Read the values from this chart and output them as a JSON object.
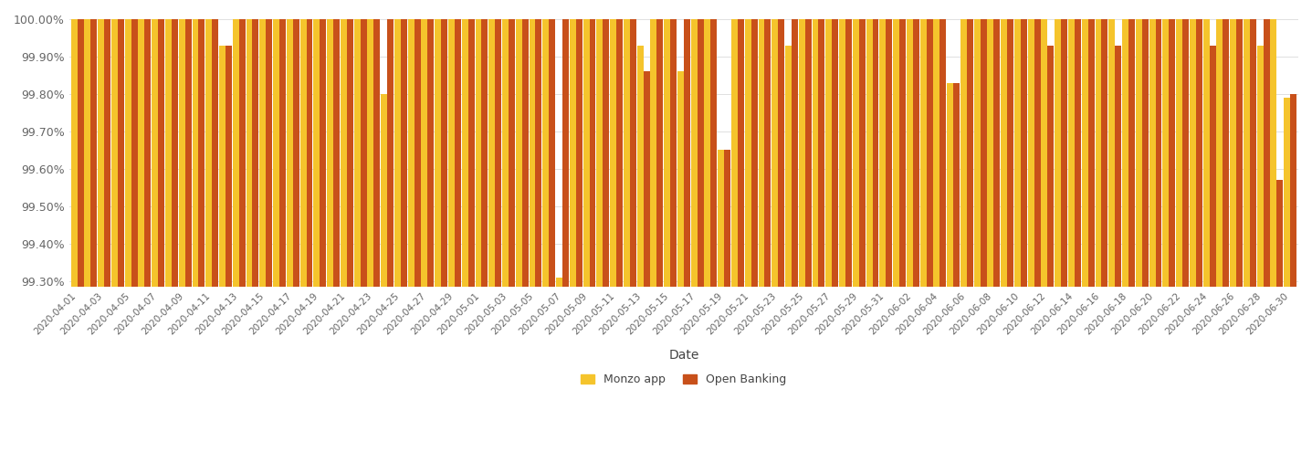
{
  "monzo_app": {
    "2020-04-01": 100.0,
    "2020-04-02": 100.0,
    "2020-04-03": 100.0,
    "2020-04-04": 100.0,
    "2020-04-05": 100.0,
    "2020-04-06": 100.0,
    "2020-04-07": 100.0,
    "2020-04-08": 100.0,
    "2020-04-09": 100.0,
    "2020-04-10": 100.0,
    "2020-04-11": 100.0,
    "2020-04-12": 99.93,
    "2020-04-13": 100.0,
    "2020-04-14": 100.0,
    "2020-04-15": 100.0,
    "2020-04-16": 100.0,
    "2020-04-17": 100.0,
    "2020-04-18": 100.0,
    "2020-04-19": 100.0,
    "2020-04-20": 100.0,
    "2020-04-21": 100.0,
    "2020-04-22": 100.0,
    "2020-04-23": 100.0,
    "2020-04-24": 99.8,
    "2020-04-25": 100.0,
    "2020-04-26": 100.0,
    "2020-04-27": 100.0,
    "2020-04-28": 100.0,
    "2020-04-29": 100.0,
    "2020-04-30": 100.0,
    "2020-05-01": 100.0,
    "2020-05-02": 100.0,
    "2020-05-03": 100.0,
    "2020-05-04": 100.0,
    "2020-05-05": 100.0,
    "2020-05-06": 100.0,
    "2020-05-07": 99.31,
    "2020-05-08": 100.0,
    "2020-05-09": 100.0,
    "2020-05-10": 100.0,
    "2020-05-11": 100.0,
    "2020-05-12": 100.0,
    "2020-05-13": 99.93,
    "2020-05-14": 100.0,
    "2020-05-15": 100.0,
    "2020-05-16": 99.86,
    "2020-05-17": 100.0,
    "2020-05-18": 100.0,
    "2020-05-19": 99.65,
    "2020-05-20": 100.0,
    "2020-05-21": 100.0,
    "2020-05-22": 100.0,
    "2020-05-23": 100.0,
    "2020-05-24": 99.93,
    "2020-05-25": 100.0,
    "2020-05-26": 100.0,
    "2020-05-27": 100.0,
    "2020-05-28": 100.0,
    "2020-05-29": 100.0,
    "2020-05-30": 100.0,
    "2020-05-31": 100.0,
    "2020-06-01": 100.0,
    "2020-06-02": 100.0,
    "2020-06-03": 100.0,
    "2020-06-04": 100.0,
    "2020-06-05": 99.83,
    "2020-06-06": 100.0,
    "2020-06-07": 100.0,
    "2020-06-08": 100.0,
    "2020-06-09": 100.0,
    "2020-06-10": 100.0,
    "2020-06-11": 100.0,
    "2020-06-12": 100.0,
    "2020-06-13": 100.0,
    "2020-06-14": 100.0,
    "2020-06-15": 100.0,
    "2020-06-16": 100.0,
    "2020-06-17": 100.0,
    "2020-06-18": 100.0,
    "2020-06-19": 100.0,
    "2020-06-20": 100.0,
    "2020-06-21": 100.0,
    "2020-06-22": 100.0,
    "2020-06-23": 100.0,
    "2020-06-24": 100.0,
    "2020-06-25": 100.0,
    "2020-06-26": 100.0,
    "2020-06-27": 100.0,
    "2020-06-28": 99.93,
    "2020-06-29": 100.0,
    "2020-06-30": 99.79
  },
  "open_banking": {
    "2020-04-01": 100.0,
    "2020-04-02": 100.0,
    "2020-04-03": 100.0,
    "2020-04-04": 100.0,
    "2020-04-05": 100.0,
    "2020-04-06": 100.0,
    "2020-04-07": 100.0,
    "2020-04-08": 100.0,
    "2020-04-09": 100.0,
    "2020-04-10": 100.0,
    "2020-04-11": 100.0,
    "2020-04-12": 99.93,
    "2020-04-13": 100.0,
    "2020-04-14": 100.0,
    "2020-04-15": 100.0,
    "2020-04-16": 100.0,
    "2020-04-17": 100.0,
    "2020-04-18": 100.0,
    "2020-04-19": 100.0,
    "2020-04-20": 100.0,
    "2020-04-21": 100.0,
    "2020-04-22": 100.0,
    "2020-04-23": 100.0,
    "2020-04-24": 100.0,
    "2020-04-25": 100.0,
    "2020-04-26": 100.0,
    "2020-04-27": 100.0,
    "2020-04-28": 100.0,
    "2020-04-29": 100.0,
    "2020-04-30": 100.0,
    "2020-05-01": 100.0,
    "2020-05-02": 100.0,
    "2020-05-03": 100.0,
    "2020-05-04": 100.0,
    "2020-05-05": 100.0,
    "2020-05-06": 100.0,
    "2020-05-07": 100.0,
    "2020-05-08": 100.0,
    "2020-05-09": 100.0,
    "2020-05-10": 100.0,
    "2020-05-11": 100.0,
    "2020-05-12": 100.0,
    "2020-05-13": 99.86,
    "2020-05-14": 100.0,
    "2020-05-15": 100.0,
    "2020-05-16": 100.0,
    "2020-05-17": 100.0,
    "2020-05-18": 100.0,
    "2020-05-19": 99.65,
    "2020-05-20": 100.0,
    "2020-05-21": 100.0,
    "2020-05-22": 100.0,
    "2020-05-23": 100.0,
    "2020-05-24": 100.0,
    "2020-05-25": 100.0,
    "2020-05-26": 100.0,
    "2020-05-27": 100.0,
    "2020-05-28": 100.0,
    "2020-05-29": 100.0,
    "2020-05-30": 100.0,
    "2020-05-31": 100.0,
    "2020-06-01": 100.0,
    "2020-06-02": 100.0,
    "2020-06-03": 100.0,
    "2020-06-04": 100.0,
    "2020-06-05": 99.83,
    "2020-06-06": 100.0,
    "2020-06-07": 100.0,
    "2020-06-08": 100.0,
    "2020-06-09": 100.0,
    "2020-06-10": 100.0,
    "2020-06-11": 100.0,
    "2020-06-12": 99.93,
    "2020-06-13": 100.0,
    "2020-06-14": 100.0,
    "2020-06-15": 100.0,
    "2020-06-16": 100.0,
    "2020-06-17": 99.93,
    "2020-06-18": 100.0,
    "2020-06-19": 100.0,
    "2020-06-20": 100.0,
    "2020-06-21": 100.0,
    "2020-06-22": 100.0,
    "2020-06-23": 100.0,
    "2020-06-24": 99.93,
    "2020-06-25": 100.0,
    "2020-06-26": 100.0,
    "2020-06-27": 100.0,
    "2020-06-28": 100.0,
    "2020-06-29": 99.57,
    "2020-06-30": 99.8
  },
  "monzo_color": "#F5C42C",
  "openbanking_color": "#C8501A",
  "ylim_min": 99.285,
  "ylim_max": 100.015,
  "yticks": [
    99.3,
    99.4,
    99.5,
    99.6,
    99.7,
    99.8,
    99.9,
    100.0
  ],
  "xlabel": "Date",
  "background_color": "#ffffff",
  "grid_color": "#e0e0e0",
  "bar_width": 0.47,
  "legend_labels": [
    "Monzo app",
    "Open Banking"
  ],
  "tick_every": 2
}
